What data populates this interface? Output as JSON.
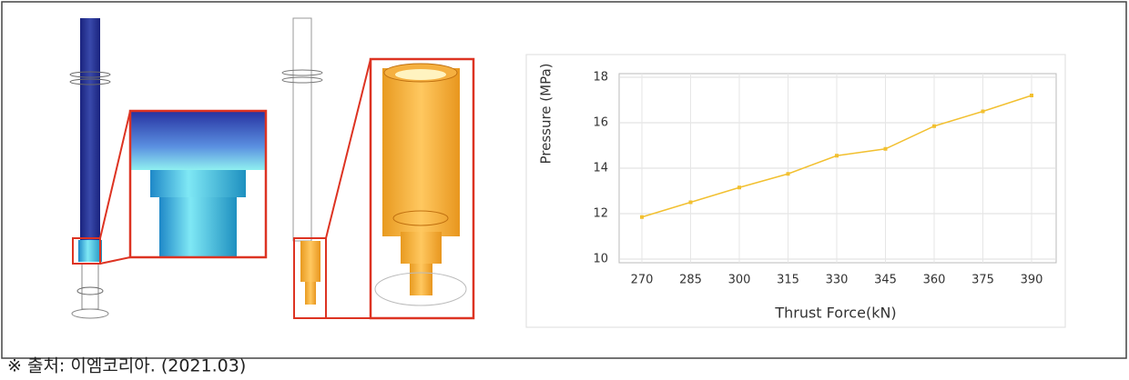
{
  "caption": "※ 출처: 이엠코리아. (2021.03)",
  "chart_data": {
    "type": "line",
    "x_label": "Thrust Force(kN)",
    "y_label": "Pressure (MPa)",
    "categories": [
      "270",
      "285",
      "300",
      "315",
      "330",
      "345",
      "360",
      "375",
      "390"
    ],
    "values": [
      11.85,
      12.5,
      13.15,
      13.75,
      14.55,
      14.85,
      15.85,
      16.5,
      17.2
    ],
    "color": "#f2c030",
    "ylim": [
      10,
      18
    ],
    "yticks": [
      10,
      12,
      14,
      16,
      18
    ],
    "grid": true
  }
}
